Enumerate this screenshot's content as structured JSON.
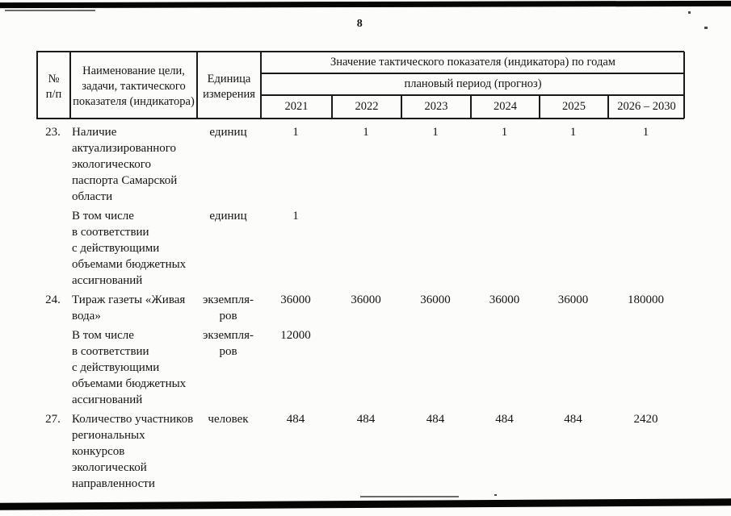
{
  "page": {
    "number": "8"
  },
  "table": {
    "headers": {
      "num": "№\nп/п",
      "name": "Наименование цели,\nзадачи, тактического\nпоказателя (индикатора)",
      "unit": "Единица\nизмерения",
      "values_title": "Значение тактического показателя (индикатора) по годам",
      "period_title": "плановый период (прогноз)",
      "years": [
        "2021",
        "2022",
        "2023",
        "2024",
        "2025",
        "2026 – 2030"
      ]
    },
    "rows": [
      {
        "num": "23.",
        "name": "Наличие\nактуализированного\nэкологического\nпаспорта Самарской\nобласти",
        "unit": "единиц",
        "values": [
          "1",
          "1",
          "1",
          "1",
          "1",
          "1"
        ]
      },
      {
        "num": "",
        "name": "В том числе\nв соответствии\nс действующими\nобъемами бюджетных\nассигнований",
        "unit": "единиц",
        "values": [
          "1",
          "",
          "",
          "",
          "",
          ""
        ]
      },
      {
        "num": "24.",
        "name": "Тираж газеты «Живая\nвода»",
        "unit": "экземпля-\nров",
        "values": [
          "36000",
          "36000",
          "36000",
          "36000",
          "36000",
          "180000"
        ]
      },
      {
        "num": "",
        "name": "В том числе\nв соответствии\nс действующими\nобъемами бюджетных\nассигнований",
        "unit": "экземпля-\nров",
        "values": [
          "12000",
          "",
          "",
          "",
          "",
          ""
        ]
      },
      {
        "num": "27.",
        "name": "Количество участников\nрегиональных\nконкурсов\nэкологической\nнаправленности",
        "unit": "человек",
        "values": [
          "484",
          "484",
          "484",
          "484",
          "484",
          "2420"
        ]
      }
    ]
  }
}
